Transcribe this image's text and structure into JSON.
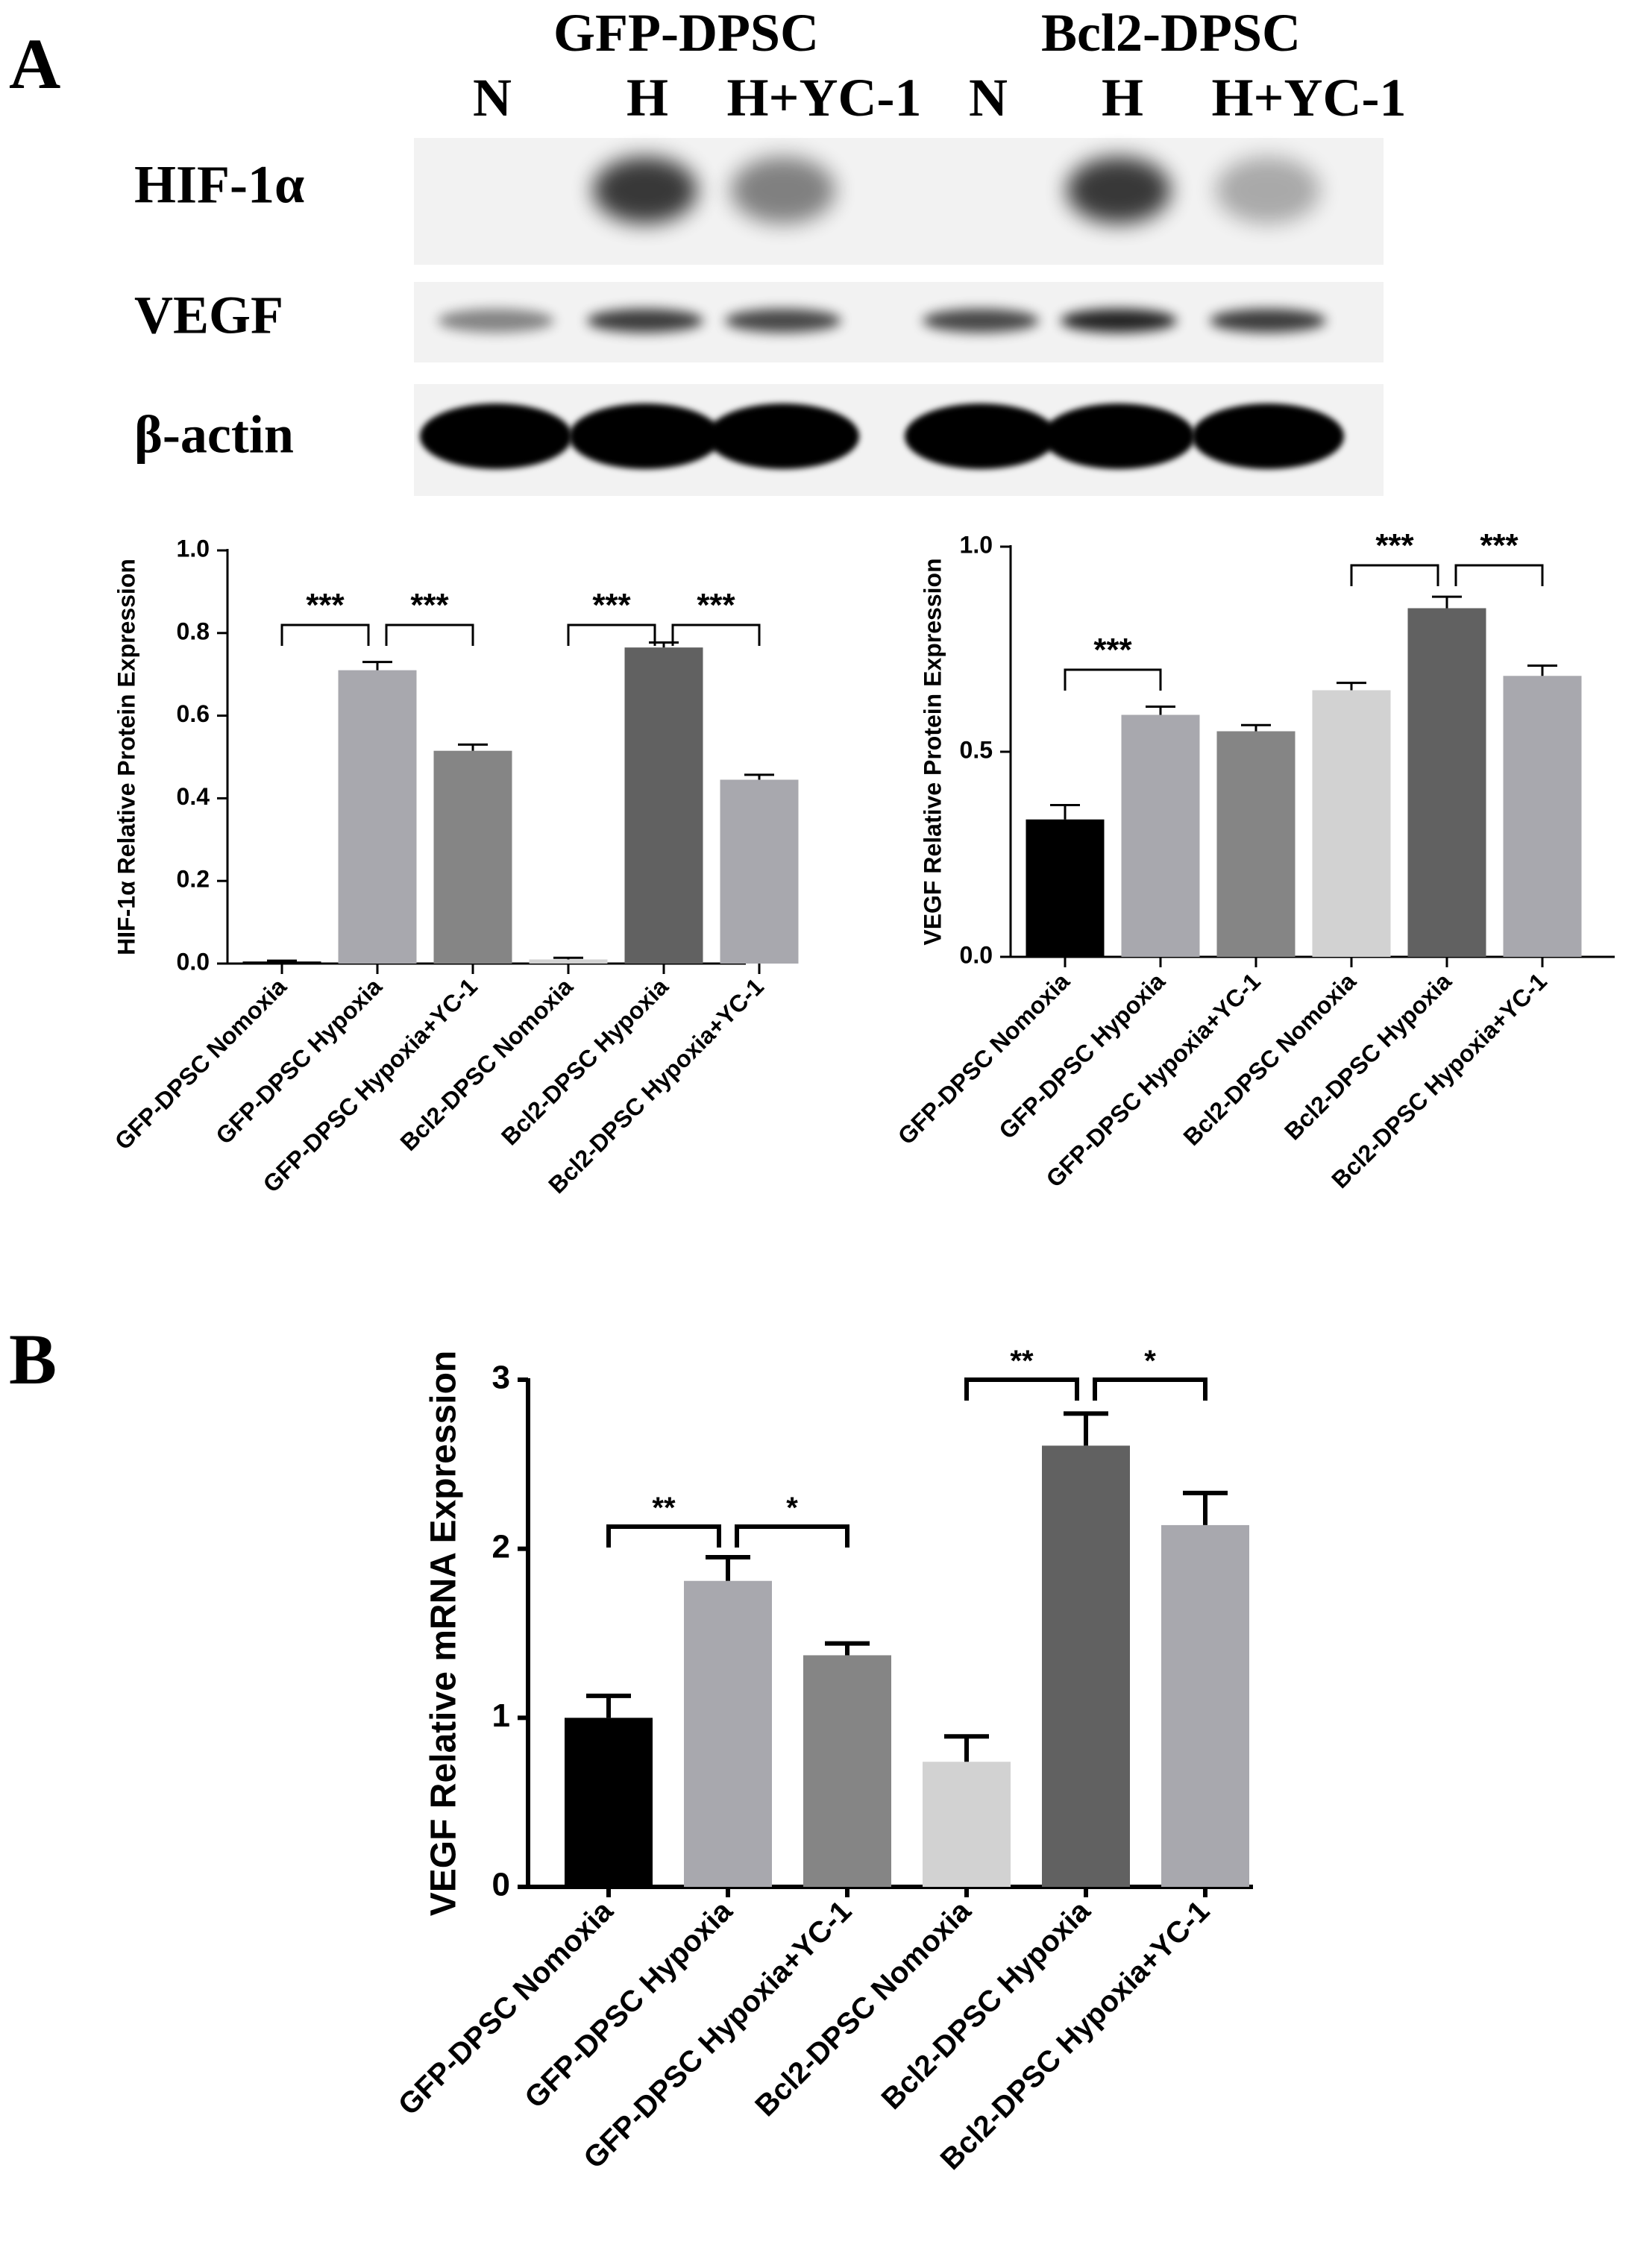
{
  "panel_labels": {
    "a": "A",
    "b": "B"
  },
  "blot": {
    "groups": [
      "GFP-DPSC",
      "Bcl2-DPSC"
    ],
    "lanes": [
      "N",
      "H",
      "H+YC-1",
      "N",
      "H",
      "H+YC-1"
    ],
    "rows": [
      {
        "label": "HIF-1α",
        "intensity": [
          0.0,
          0.9,
          0.55,
          0.0,
          0.9,
          0.35
        ]
      },
      {
        "label": "VEGF",
        "intensity": [
          0.45,
          0.75,
          0.7,
          0.7,
          0.85,
          0.75
        ]
      },
      {
        "label": "β-actin",
        "intensity": [
          1,
          1,
          1,
          1,
          1,
          1
        ]
      }
    ]
  },
  "colors": {
    "black": "#000000",
    "light_gray": "#a8a8ae",
    "mid_gray": "#858585",
    "pale_gray": "#d2d2d2",
    "dark_gray": "#616161"
  },
  "chart_data": [
    {
      "type": "bar",
      "panel": "A-left",
      "categories": [
        "GFP-DPSC Nomoxia",
        "GFP-DPSC Hypoxia",
        "GFP-DPSC Hypoxia+YC-1",
        "Bcl2-DPSC Nomoxia",
        "Bcl2-DPSC Hypoxia",
        "Bcl2-DPSC Hypoxia+YC-1"
      ],
      "values": [
        0.005,
        0.71,
        0.515,
        0.01,
        0.765,
        0.445
      ],
      "errors": [
        0.002,
        0.02,
        0.015,
        0.004,
        0.012,
        0.012
      ],
      "colors": [
        "#000000",
        "#a8a8ae",
        "#858585",
        "#d2d2d2",
        "#616161",
        "#a8a8ae"
      ],
      "ylabel": "HIF-1α Relative Protein Expression",
      "ylim": [
        0,
        1.0
      ],
      "yticks": [
        "0.0",
        "0.2",
        "0.4",
        "0.6",
        "0.8",
        "1.0"
      ],
      "annotations": [
        {
          "from": 0,
          "to": 1,
          "text": "***"
        },
        {
          "from": 1,
          "to": 2,
          "text": "***"
        },
        {
          "from": 3,
          "to": 4,
          "text": "***"
        },
        {
          "from": 4,
          "to": 5,
          "text": "***"
        }
      ]
    },
    {
      "type": "bar",
      "panel": "A-right",
      "categories": [
        "GFP-DPSC Nomoxia",
        "GFP-DPSC Hypoxia",
        "GFP-DPSC Hypoxia+YC-1",
        "Bcl2-DPSC Nomoxia",
        "Bcl2-DPSC Hypoxia",
        "Bcl2-DPSC Hypoxia+YC-1"
      ],
      "values": [
        0.335,
        0.59,
        0.55,
        0.65,
        0.85,
        0.685
      ],
      "errors": [
        0.035,
        0.02,
        0.015,
        0.018,
        0.028,
        0.025
      ],
      "colors": [
        "#000000",
        "#a8a8ae",
        "#858585",
        "#d2d2d2",
        "#616161",
        "#a8a8ae"
      ],
      "ylabel": "VEGF Relative Protein Expression",
      "ylim": [
        0,
        1.0
      ],
      "yticks": [
        "0.0",
        "0.5",
        "1.0"
      ],
      "annotations": [
        {
          "from": 0,
          "to": 1,
          "text": "***"
        },
        {
          "from": 3,
          "to": 4,
          "text": "***"
        },
        {
          "from": 4,
          "to": 5,
          "text": "***"
        }
      ]
    },
    {
      "type": "bar",
      "panel": "B",
      "categories": [
        "GFP-DPSC Nomoxia",
        "GFP-DPSC Hypoxia",
        "GFP-DPSC Hypoxia+YC-1",
        "Bcl2-DPSC Nomoxia",
        "Bcl2-DPSC Hypoxia",
        "Bcl2-DPSC Hypoxia+YC-1"
      ],
      "values": [
        1.0,
        1.81,
        1.37,
        0.74,
        2.61,
        2.14
      ],
      "errors": [
        0.13,
        0.14,
        0.07,
        0.15,
        0.19,
        0.19
      ],
      "colors": [
        "#000000",
        "#a8a8ae",
        "#858585",
        "#d2d2d2",
        "#616161",
        "#a8a8ae"
      ],
      "ylabel": "VEGF Relative mRNA Expression",
      "ylim": [
        0,
        3
      ],
      "yticks": [
        "0",
        "1",
        "2",
        "3"
      ],
      "annotations": [
        {
          "from": 0,
          "to": 1,
          "text": "**"
        },
        {
          "from": 1,
          "to": 2,
          "text": "*"
        },
        {
          "from": 3,
          "to": 4,
          "text": "**"
        },
        {
          "from": 4,
          "to": 5,
          "text": "*"
        }
      ]
    }
  ]
}
